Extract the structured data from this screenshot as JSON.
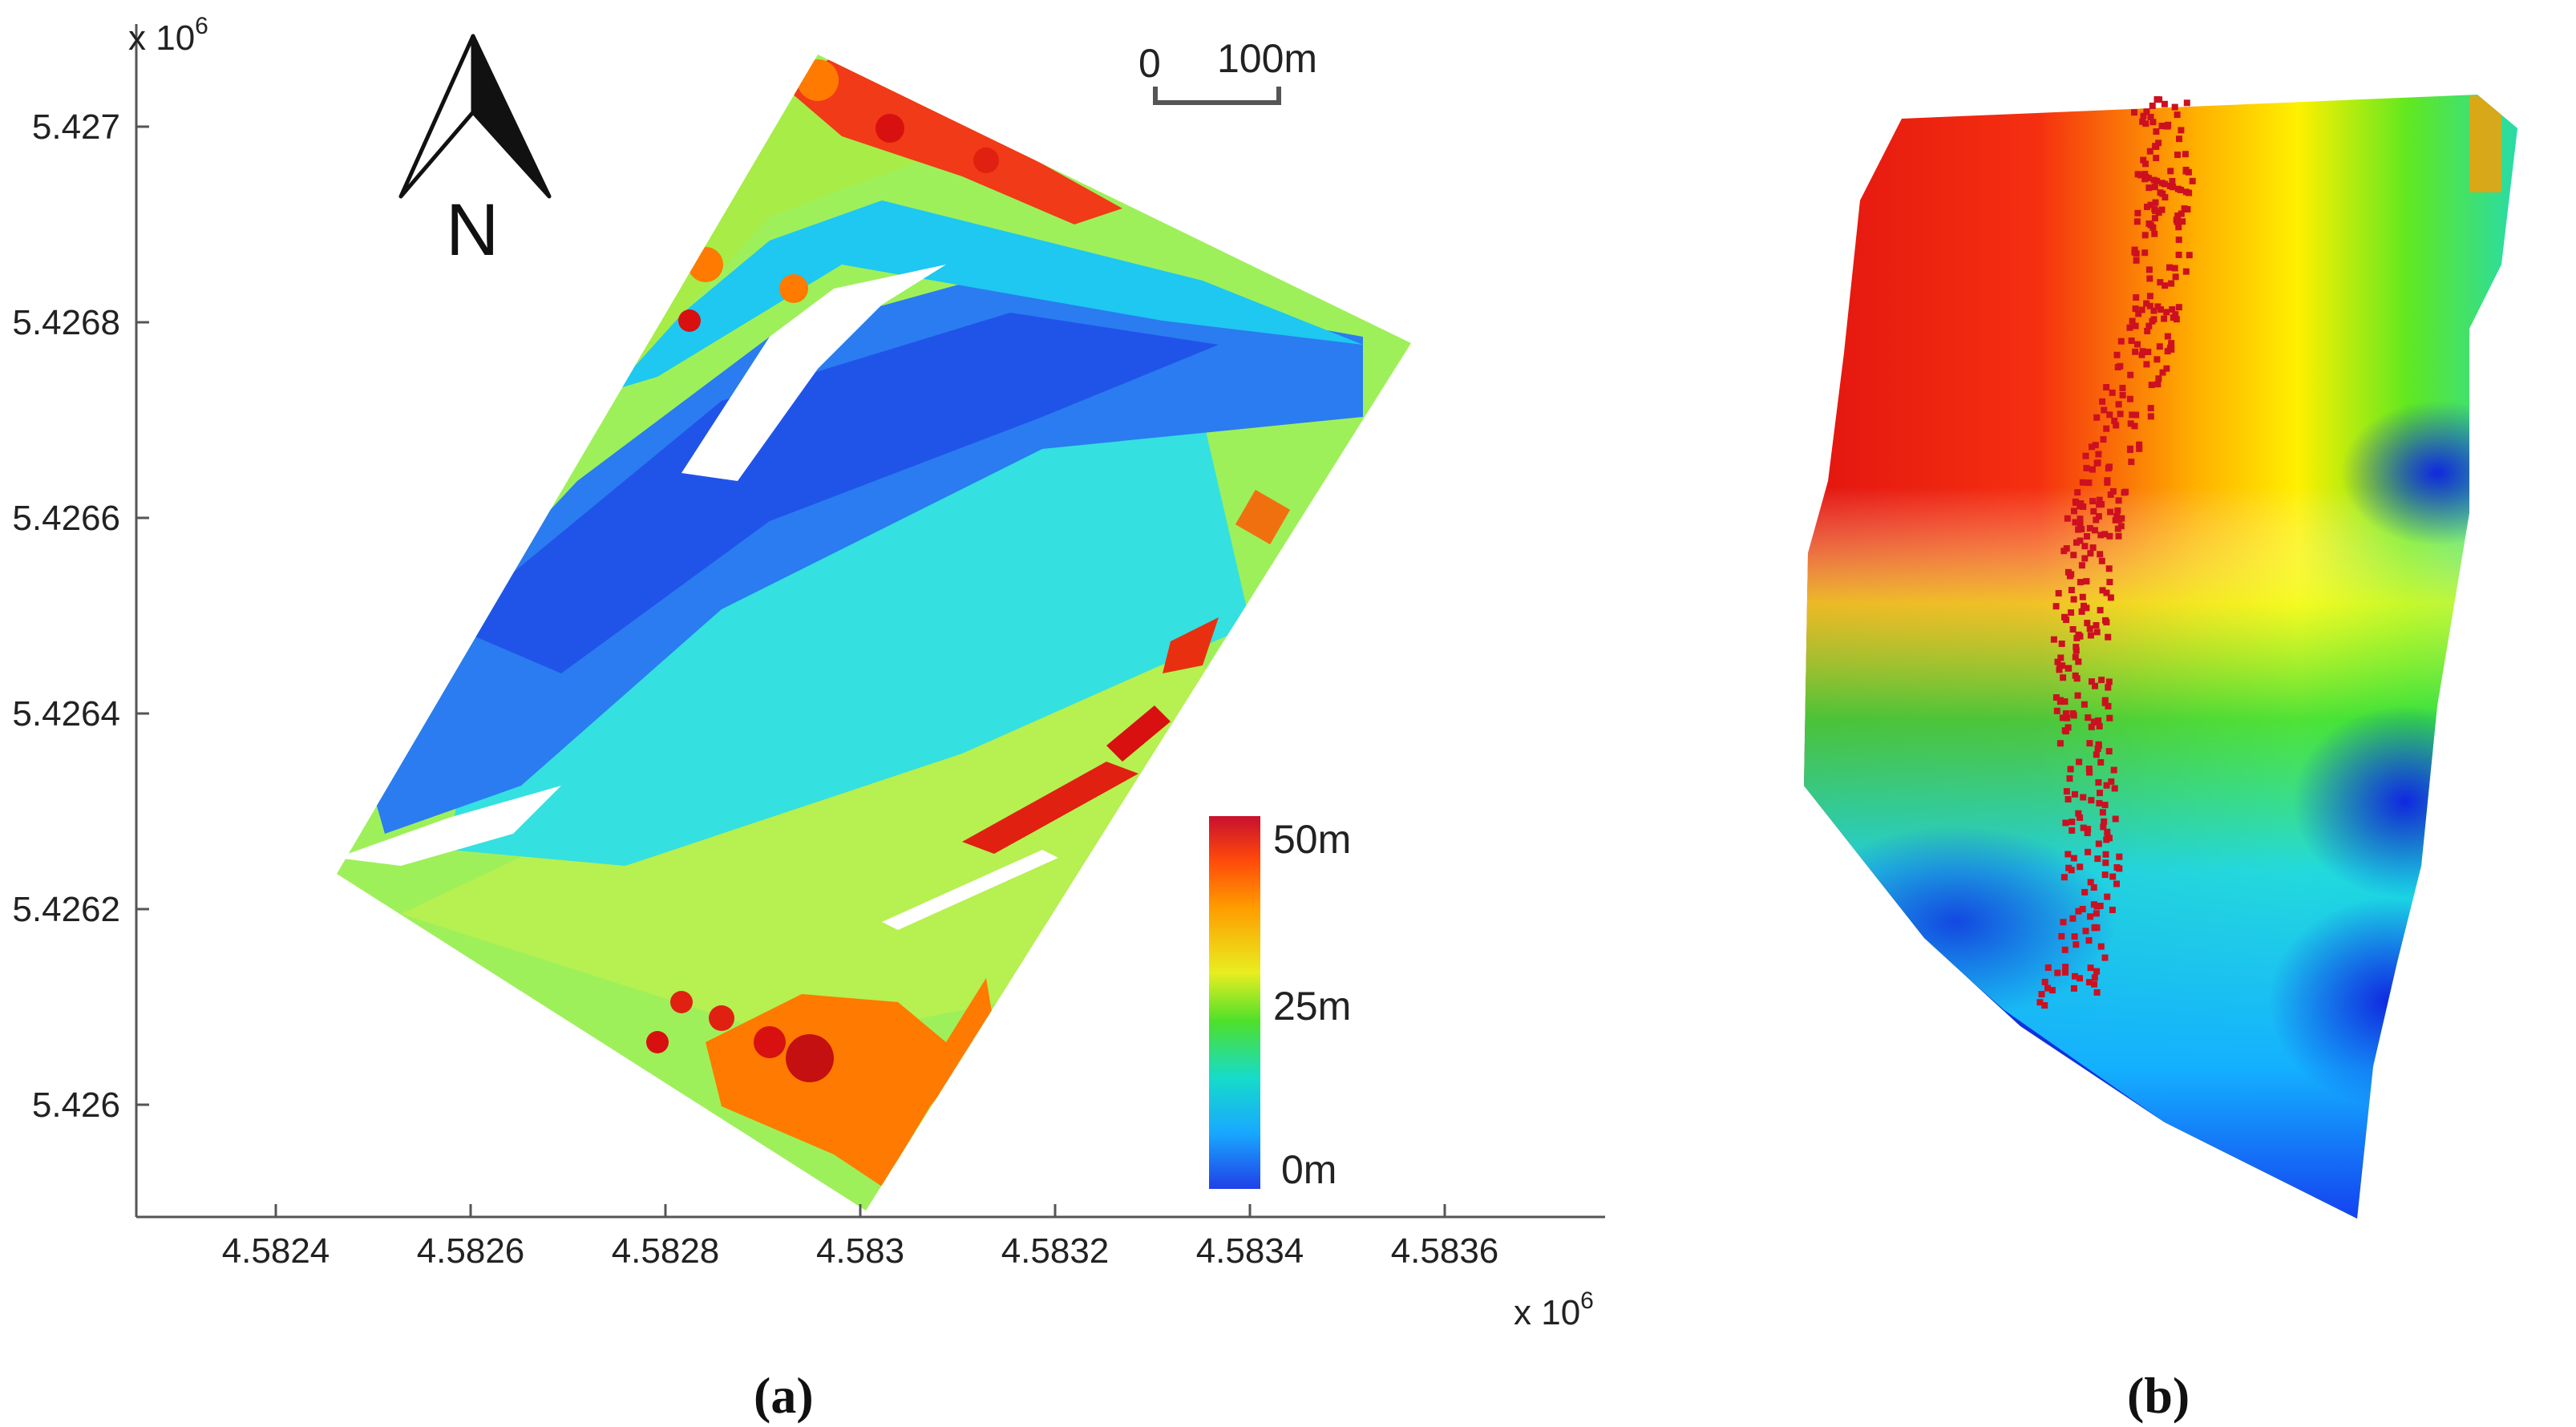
{
  "panel_a": {
    "label": "(a)",
    "x_exponent": "x 10",
    "x_exponent_power": "6",
    "y_exponent": "x 10",
    "y_exponent_power": "6",
    "x_ticks": [
      "4.5824",
      "4.5826",
      "4.5828",
      "4.583",
      "4.5832",
      "4.5834",
      "4.5836"
    ],
    "y_ticks": [
      "5.427",
      "5.4268",
      "5.4266",
      "5.4264",
      "5.4262",
      "5.426"
    ],
    "north_arrow": {
      "label": "N",
      "icon": "north-arrow-icon"
    },
    "scale_bar": {
      "start_label": "0",
      "end_label": "100m"
    },
    "colorbar": {
      "labels": [
        "50m",
        "25m",
        "0m"
      ],
      "colors": [
        "#c8102e",
        "#ff6a00",
        "#ffd21a",
        "#c8f020",
        "#22d83a",
        "#19d8d0",
        "#1ab0ff",
        "#1e3cf0"
      ]
    }
  },
  "panel_b": {
    "label": "(b)",
    "colors": {
      "high": "#e8141a",
      "mid_high": "#ffb000",
      "mid": "#ffff00",
      "mid_low": "#22dd33",
      "low": "#12e6ea",
      "lowest": "#1432ee"
    }
  }
}
